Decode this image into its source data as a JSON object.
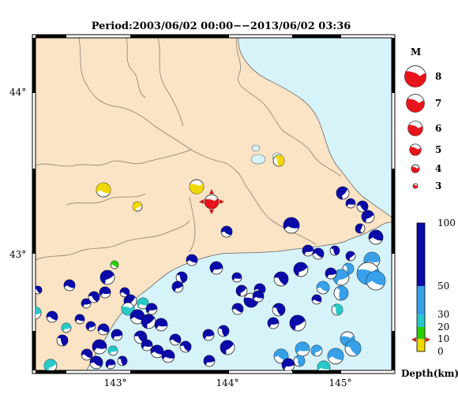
{
  "title": "Period:2003/06/02 00:00−−2013/06/02 03:36",
  "map": {
    "lat_labels": [
      "44°",
      "43°"
    ],
    "lon_labels": [
      "143°",
      "144°",
      "145°"
    ],
    "colors": {
      "sea": "#d7f3fa",
      "land": "#fbe3c5",
      "border": "#8a8070",
      "frame": "#000000"
    }
  },
  "magnitude_legend": {
    "title": "M",
    "items": [
      {
        "label": "8",
        "m": 8
      },
      {
        "label": "7",
        "m": 7
      },
      {
        "label": "6",
        "m": 6
      },
      {
        "label": "5",
        "m": 5
      },
      {
        "label": "4",
        "m": 4
      },
      {
        "label": "3",
        "m": 3
      }
    ],
    "color": "#e8141b"
  },
  "depth_legend": {
    "title": "Depth(km)",
    "ticks": [
      "100",
      "50",
      "30",
      "20",
      "10",
      "0"
    ],
    "bands": [
      {
        "from": 0,
        "to": 10,
        "color": "#f0d800"
      },
      {
        "from": 10,
        "to": 20,
        "color": "#2ad000"
      },
      {
        "from": 20,
        "to": 30,
        "color": "#28c8c8"
      },
      {
        "from": 30,
        "to": 50,
        "color": "#38a0e8"
      },
      {
        "from": 50,
        "to": 100,
        "color": "#0a0aa8"
      }
    ]
  }
}
